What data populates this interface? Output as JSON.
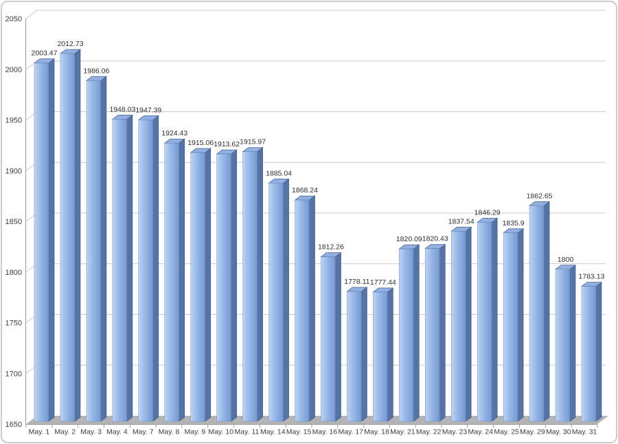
{
  "chart_data": {
    "type": "bar",
    "variant": "3d-column",
    "title": "",
    "categories": [
      "May. 1",
      "May. 2",
      "May. 3",
      "May. 4",
      "May. 7",
      "May. 8",
      "May. 9",
      "May. 10",
      "May. 11",
      "May. 14",
      "May. 15",
      "May. 16",
      "May. 17",
      "May. 18",
      "May. 21",
      "May. 22",
      "May. 23",
      "May. 24",
      "May. 25",
      "May. 29",
      "May. 30",
      "May. 31"
    ],
    "values": [
      2003.47,
      2012.73,
      1986.06,
      1948.03,
      1947.39,
      1924.43,
      1915.06,
      1913.62,
      1915.97,
      1885.04,
      1868.24,
      1812.26,
      1778.11,
      1777.44,
      1820.09,
      1820.43,
      1837.54,
      1846.29,
      1835.9,
      1862.65,
      1800,
      1783.13
    ],
    "value_labels": [
      "2003.47",
      "2012.73",
      "1986.06",
      "1948.03",
      "1947.39",
      "1924.43",
      "1915.06",
      "1913.62",
      "1915.97",
      "1885.04",
      "1868.24",
      "1812.26",
      "1778.11",
      "1777.44",
      "1820.09",
      "1820.43",
      "1837.54",
      "1846.29",
      "1835.9",
      "1862.65",
      "1800",
      "1783.13"
    ],
    "xlabel": "",
    "ylabel": "",
    "ylim": [
      1650,
      2050
    ],
    "ytick_step": 50,
    "ytick_labels": [
      "1650",
      "1700",
      "1750",
      "1800",
      "1850",
      "1900",
      "1950",
      "2000",
      "2050"
    ],
    "grid": true,
    "legend": false,
    "colors": {
      "bar_face_gradient": [
        "#cadcf6",
        "#b4ccf0",
        "#8fb1e3",
        "#7c9ed7",
        "#7394cc"
      ],
      "bar_face_edge": "#6a88bd",
      "bar_side": "#5573a5",
      "bar_top": "#93b0e0",
      "bar_edge": "#42608f",
      "gridline": "#c9c9c9",
      "axis": "#9b9b9b",
      "floor": "#b4b4b4",
      "label_text": "#2e2e2e",
      "axis_text": "#3d3d3d",
      "background": "#ffffff",
      "frame_border": "#cbcbcb"
    }
  }
}
